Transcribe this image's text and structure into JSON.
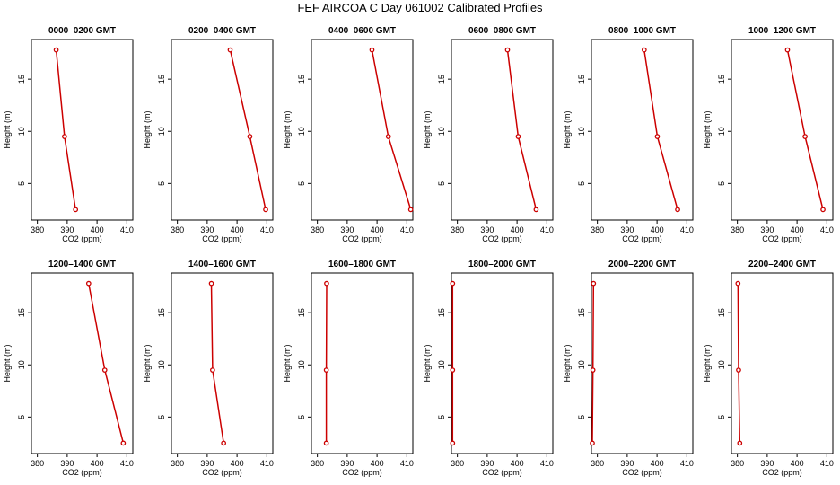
{
  "title": "FEF AIRCOA C  Day 061002  Calibrated Profiles",
  "chart_data": [
    {
      "type": "line",
      "title": "0000–0200 GMT",
      "xlabel": "CO2 (ppm)",
      "ylabel": "Height (m)",
      "xlim": [
        378,
        412
      ],
      "ylim": [
        1.5,
        18.8
      ],
      "xticks": [
        380,
        390,
        400,
        410
      ],
      "yticks": [
        5,
        10,
        15
      ],
      "x": [
        386.3,
        389.1,
        392.8
      ],
      "y": [
        17.8,
        9.5,
        2.5
      ],
      "color": "#cc0000"
    },
    {
      "type": "line",
      "title": "0200–0400 GMT",
      "xlabel": "CO2 (ppm)",
      "ylabel": "Height (m)",
      "xlim": [
        378,
        412
      ],
      "ylim": [
        1.5,
        18.8
      ],
      "xticks": [
        380,
        390,
        400,
        410
      ],
      "yticks": [
        5,
        10,
        15
      ],
      "x": [
        397.7,
        404.3,
        409.6
      ],
      "y": [
        17.8,
        9.5,
        2.5
      ],
      "color": "#cc0000"
    },
    {
      "type": "line",
      "title": "0400–0600 GMT",
      "xlabel": "CO2 (ppm)",
      "ylabel": "Height (m)",
      "xlim": [
        378,
        412
      ],
      "ylim": [
        1.5,
        18.8
      ],
      "xticks": [
        380,
        390,
        400,
        410
      ],
      "yticks": [
        5,
        10,
        15
      ],
      "x": [
        398.3,
        403.8,
        411.3
      ],
      "y": [
        17.8,
        9.5,
        2.5
      ],
      "color": "#cc0000"
    },
    {
      "type": "line",
      "title": "0600–0800 GMT",
      "xlabel": "CO2 (ppm)",
      "ylabel": "Height (m)",
      "xlim": [
        378,
        412
      ],
      "ylim": [
        1.5,
        18.8
      ],
      "xticks": [
        380,
        390,
        400,
        410
      ],
      "yticks": [
        5,
        10,
        15
      ],
      "x": [
        396.8,
        400.4,
        406.4
      ],
      "y": [
        17.8,
        9.5,
        2.5
      ],
      "color": "#cc0000"
    },
    {
      "type": "line",
      "title": "0800–1000 GMT",
      "xlabel": "CO2 (ppm)",
      "ylabel": "Height (m)",
      "xlim": [
        378,
        412
      ],
      "ylim": [
        1.5,
        18.8
      ],
      "xticks": [
        380,
        390,
        400,
        410
      ],
      "yticks": [
        5,
        10,
        15
      ],
      "x": [
        395.7,
        400.1,
        406.9
      ],
      "y": [
        17.8,
        9.5,
        2.5
      ],
      "color": "#cc0000"
    },
    {
      "type": "line",
      "title": "1000–1200 GMT",
      "xlabel": "CO2 (ppm)",
      "ylabel": "Height (m)",
      "xlim": [
        378,
        412
      ],
      "ylim": [
        1.5,
        18.8
      ],
      "xticks": [
        380,
        390,
        400,
        410
      ],
      "yticks": [
        5,
        10,
        15
      ],
      "x": [
        396.8,
        402.7,
        408.7
      ],
      "y": [
        17.8,
        9.5,
        2.5
      ],
      "color": "#cc0000"
    },
    {
      "type": "line",
      "title": "1200–1400 GMT",
      "xlabel": "CO2 (ppm)",
      "ylabel": "Height (m)",
      "xlim": [
        378,
        412
      ],
      "ylim": [
        1.5,
        18.8
      ],
      "xticks": [
        380,
        390,
        400,
        410
      ],
      "yticks": [
        5,
        10,
        15
      ],
      "x": [
        397.2,
        402.6,
        408.8
      ],
      "y": [
        17.8,
        9.5,
        2.5
      ],
      "color": "#cc0000"
    },
    {
      "type": "line",
      "title": "1400–1600 GMT",
      "xlabel": "CO2 (ppm)",
      "ylabel": "Height (m)",
      "xlim": [
        378,
        412
      ],
      "ylim": [
        1.5,
        18.8
      ],
      "xticks": [
        380,
        390,
        400,
        410
      ],
      "yticks": [
        5,
        10,
        15
      ],
      "x": [
        391.4,
        391.8,
        395.5
      ],
      "y": [
        17.8,
        9.5,
        2.5
      ],
      "color": "#cc0000"
    },
    {
      "type": "line",
      "title": "1600–1800 GMT",
      "xlabel": "CO2 (ppm)",
      "ylabel": "Height (m)",
      "xlim": [
        378,
        412
      ],
      "ylim": [
        1.5,
        18.8
      ],
      "xticks": [
        380,
        390,
        400,
        410
      ],
      "yticks": [
        5,
        10,
        15
      ],
      "x": [
        383.1,
        383.0,
        383.0
      ],
      "y": [
        17.8,
        9.5,
        2.5
      ],
      "color": "#cc0000"
    },
    {
      "type": "line",
      "title": "1800–2000 GMT",
      "xlabel": "CO2 (ppm)",
      "ylabel": "Height (m)",
      "xlim": [
        378,
        412
      ],
      "ylim": [
        1.5,
        18.8
      ],
      "xticks": [
        380,
        390,
        400,
        410
      ],
      "yticks": [
        5,
        10,
        15
      ],
      "x": [
        378.4,
        378.4,
        378.4
      ],
      "y": [
        17.8,
        9.5,
        2.5
      ],
      "color": "#cc0000"
    },
    {
      "type": "line",
      "title": "2000–2200 GMT",
      "xlabel": "CO2 (ppm)",
      "ylabel": "Height (m)",
      "xlim": [
        378,
        412
      ],
      "ylim": [
        1.5,
        18.8
      ],
      "xticks": [
        380,
        390,
        400,
        410
      ],
      "yticks": [
        5,
        10,
        15
      ],
      "x": [
        378.7,
        378.5,
        378.3
      ],
      "y": [
        17.8,
        9.5,
        2.5
      ],
      "color": "#cc0000"
    },
    {
      "type": "line",
      "title": "2200–2400 GMT",
      "xlabel": "CO2 (ppm)",
      "ylabel": "Height (m)",
      "xlim": [
        378,
        412
      ],
      "ylim": [
        1.5,
        18.8
      ],
      "xticks": [
        380,
        390,
        400,
        410
      ],
      "yticks": [
        5,
        10,
        15
      ],
      "x": [
        380.2,
        380.4,
        380.8
      ],
      "y": [
        17.8,
        9.5,
        2.5
      ],
      "color": "#cc0000"
    }
  ]
}
